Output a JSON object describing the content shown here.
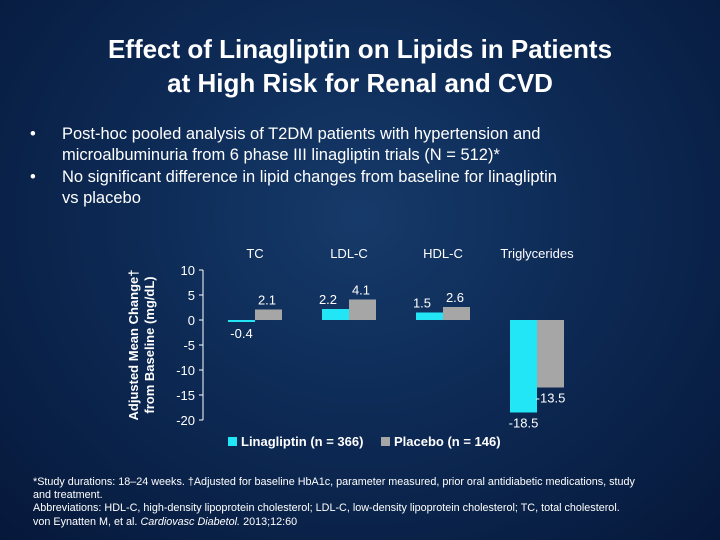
{
  "title": {
    "line1": "Effect of Linagliptin on Lipids in Patients",
    "line2": "at High Risk for Renal and CVD"
  },
  "bullets": [
    {
      "marker": "•",
      "line1": "Post-hoc pooled analysis of T2DM patients with hypertension and",
      "line2": "microalbuminuria from 6 phase III linagliptin trials (N = 512)*"
    },
    {
      "marker": "•",
      "line1": "No significant difference in lipid changes from baseline for linagliptin",
      "line2": "vs placebo"
    }
  ],
  "colors": {
    "linagliptin": "#22e5f5",
    "placebo": "#a6a6a6"
  },
  "chart_data": {
    "type": "bar",
    "categories": [
      "TC",
      "LDL-C",
      "HDL-C",
      "Triglycerides"
    ],
    "series": [
      {
        "name": "Linagliptin (n = 366)",
        "values": [
          -0.4,
          2.2,
          1.5,
          -18.5
        ],
        "labels": [
          "-0.4",
          "2.2",
          "1.5",
          "-18.5"
        ]
      },
      {
        "name": "Placebo (n = 146)",
        "values": [
          2.1,
          4.1,
          2.6,
          -13.5
        ],
        "labels": [
          "2.1",
          "4.1",
          "2.6",
          "-13.5"
        ]
      }
    ],
    "ylabel_line1": "Adjusted Mean Change†",
    "ylabel_line2": "from Baseline (mg/dL)",
    "ylim": [
      -20,
      10
    ],
    "yticks": [
      10,
      5,
      0,
      -5,
      -10,
      -15,
      -20
    ],
    "legend_position": "bottom"
  },
  "footnote": {
    "line1": "*Study durations: 18–24 weeks. †Adjusted for baseline HbA1c, parameter measured, prior oral antidiabetic medications, study",
    "line2": "and treatment.",
    "line3": "Abbreviations: HDL-C, high-density lipoprotein cholesterol; LDL-C, low-density lipoprotein cholesterol; TC, total cholesterol.",
    "citation_authors": "von Eynatten M, et al.",
    "citation_journal": "Cardiovasc Diabetol.",
    "citation_ref": "2013;12:60"
  }
}
